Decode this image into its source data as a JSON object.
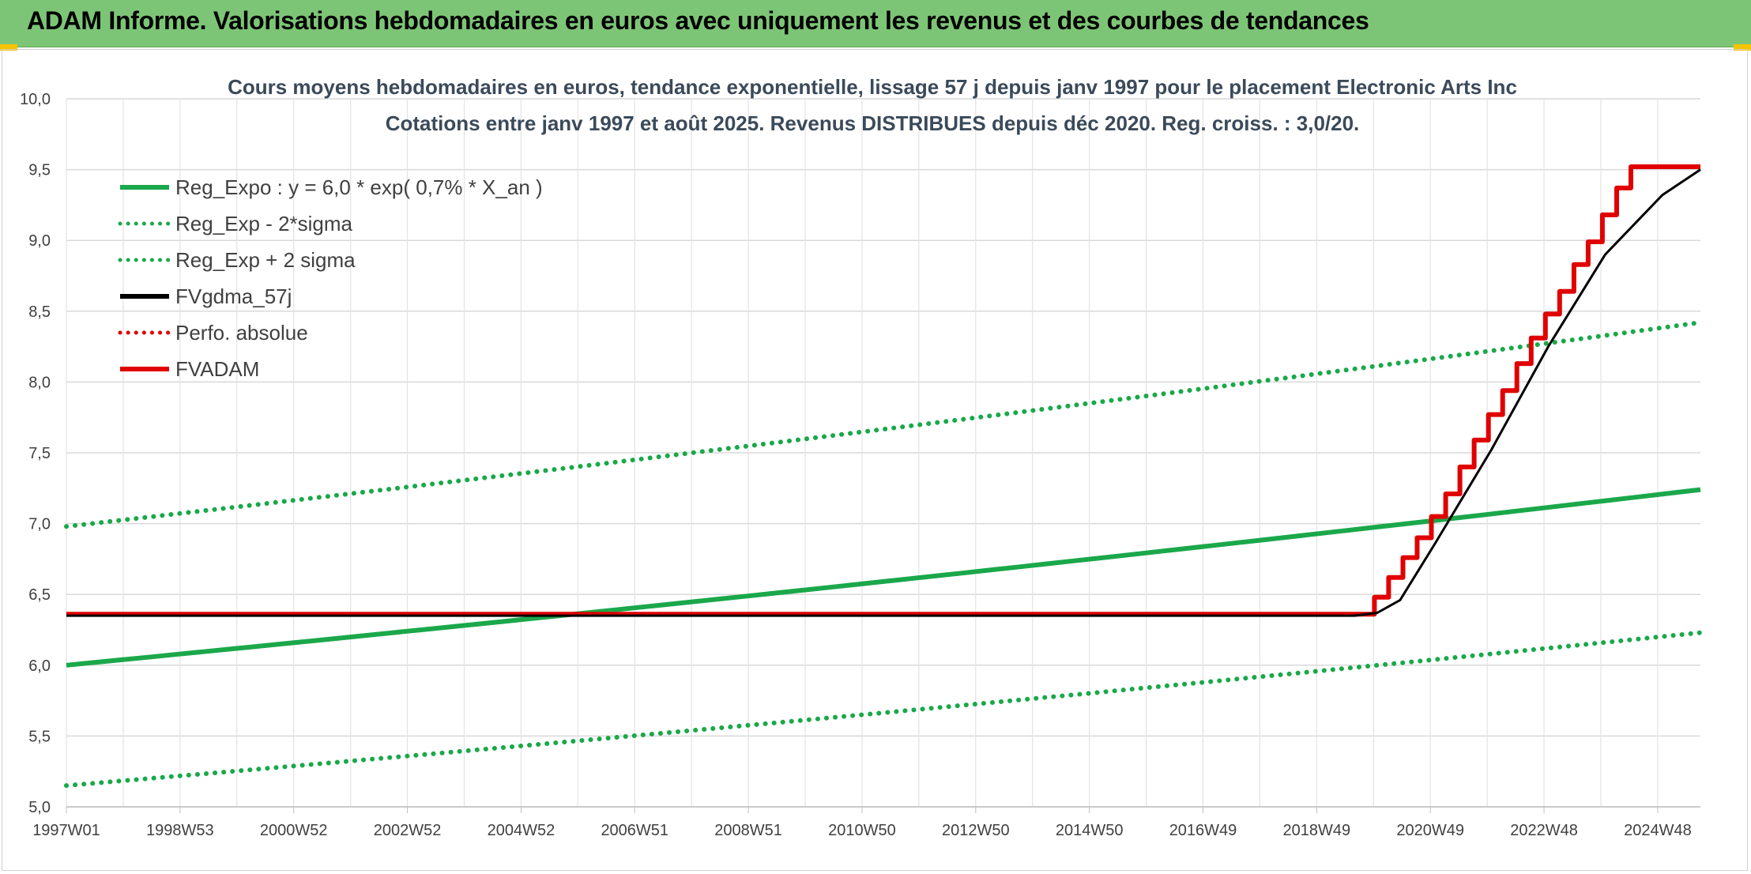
{
  "banner": {
    "title": "ADAM Informe. Valorisations hebdomadaires en euros avec uniquement les revenus et des courbes de tendances"
  },
  "chart_data": {
    "type": "line",
    "title": "Cours moyens hebdomadaires en euros, tendance exponentielle, lissage 57 j depuis janv 1997 pour le placement Electronic Arts Inc",
    "subtitle": "Cotations entre janv 1997 et août 2025. Revenus DISTRIBUES depuis déc 2020. Reg. croiss. : 3,0/20.",
    "x_start_year": 1997.0,
    "x_end_year": 2025.67,
    "x_tick_labels": [
      "1997W01",
      "1998W53",
      "2000W52",
      "2002W52",
      "2004W52",
      "2006W51",
      "2008W51",
      "2010W50",
      "2012W50",
      "2014W50",
      "2016W49",
      "2018W49",
      "2020W49",
      "2022W48",
      "2024W48"
    ],
    "ylim": [
      5.0,
      10.0
    ],
    "y_ticks": [
      "5,0",
      "5,5",
      "6,0",
      "6,5",
      "7,0",
      "7,5",
      "8,0",
      "8,5",
      "9,0",
      "9,5",
      "10,0"
    ],
    "y_tick_values": [
      5.0,
      5.5,
      6.0,
      6.5,
      7.0,
      7.5,
      8.0,
      8.5,
      9.0,
      9.5,
      10.0
    ],
    "grid": true,
    "legend_position": "top-left",
    "series": [
      {
        "name": "Reg_Expo : y = 6,0 * exp( 0,7% *  X_an )",
        "color": "#1aa84a",
        "style": "solid",
        "x": [
          1997.0,
          2025.67
        ],
        "y": [
          6.0,
          7.24
        ]
      },
      {
        "name": "Reg_Exp - 2*sigma",
        "color": "#1aa84a",
        "style": "dotted",
        "x": [
          1997.0,
          2025.67
        ],
        "y": [
          5.15,
          6.23
        ]
      },
      {
        "name": "Reg_Exp + 2 sigma",
        "color": "#1aa84a",
        "style": "dotted",
        "x": [
          1997.0,
          2025.67
        ],
        "y": [
          6.98,
          8.42
        ]
      },
      {
        "name": "FVgdma_57j",
        "color": "#000000",
        "style": "solid",
        "x": [
          1997.0,
          2019.6,
          2020.0,
          2020.4,
          2021.0,
          2022.0,
          2023.0,
          2024.0,
          2025.0,
          2025.67
        ],
        "y": [
          6.35,
          6.35,
          6.37,
          6.46,
          6.85,
          7.52,
          8.25,
          8.9,
          9.32,
          9.5
        ]
      },
      {
        "name": "Perfo. absolue",
        "color": "#e00000",
        "style": "dotted",
        "x": [],
        "y": []
      },
      {
        "name": "FVADAM",
        "color": "#e00000",
        "style": "step",
        "x": [
          1997.0,
          2019.95,
          2019.95,
          2020.2,
          2020.2,
          2020.45,
          2020.45,
          2020.7,
          2020.7,
          2020.95,
          2020.95,
          2021.2,
          2021.2,
          2021.45,
          2021.45,
          2021.7,
          2021.7,
          2021.95,
          2021.95,
          2022.2,
          2022.2,
          2022.45,
          2022.45,
          2022.7,
          2022.7,
          2022.95,
          2022.95,
          2023.2,
          2023.2,
          2023.45,
          2023.45,
          2023.7,
          2023.7,
          2023.95,
          2023.95,
          2024.2,
          2024.2,
          2024.45,
          2024.45,
          2024.7,
          2024.7,
          2024.95,
          2024.95,
          2025.2,
          2025.2,
          2025.45,
          2025.45,
          2025.67
        ],
        "y": [
          6.36,
          6.36,
          6.48,
          6.48,
          6.62,
          6.62,
          6.76,
          6.76,
          6.9,
          6.9,
          7.05,
          7.05,
          7.21,
          7.21,
          7.4,
          7.4,
          7.59,
          7.59,
          7.77,
          7.77,
          7.94,
          7.94,
          8.13,
          8.13,
          8.31,
          8.31,
          8.48,
          8.48,
          8.64,
          8.64,
          8.83,
          8.83,
          8.99,
          8.99,
          9.18,
          9.18,
          9.37,
          9.37,
          9.52,
          9.52,
          9.52,
          9.52,
          9.52,
          9.52,
          9.52,
          9.52,
          9.52,
          9.52
        ]
      }
    ]
  }
}
